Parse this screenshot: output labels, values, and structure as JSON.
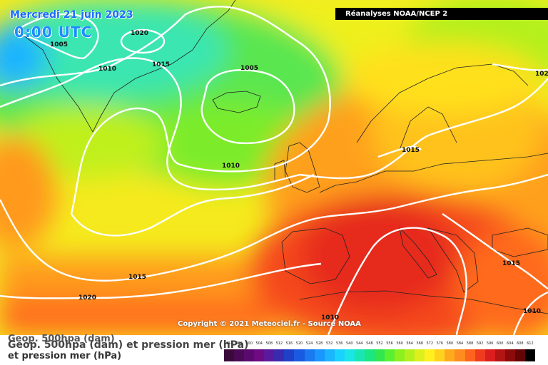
{
  "header": {
    "date": "Mercredi 21 juin 2023",
    "time": "0:00 UTC",
    "source": "Réanalyses NOAA/NCEP 2"
  },
  "copyright": "Copyright © 2021 Meteociel.fr - Source NOAA",
  "isobars": {
    "l1020_nw": "1020",
    "l1005_w": "1005",
    "l1010_w": "1010",
    "l1015_n": "1015",
    "l1005_ice": "1005",
    "l1010_c": "1010",
    "l1015_eu": "1015",
    "l102_ne": "102",
    "l1015_sw": "1015",
    "l1020_sw": "1020",
    "l1015_e": "1015",
    "l1010_se": "1010",
    "l1010_s": "1010"
  },
  "legend": {
    "title_ghost": "Geop. 500hpa (dam)",
    "title": "Geop. 500hpa (dam) et pression mer (hPa)",
    "title_line2": "et pression mer (hPa)",
    "scale_labels": [
      "492",
      "496",
      "500",
      "504",
      "508",
      "512",
      "516",
      "520",
      "524",
      "528",
      "532",
      "536",
      "540",
      "544",
      "548",
      "552",
      "556",
      "560",
      "564",
      "568",
      "572",
      "576",
      "580",
      "584",
      "588",
      "592",
      "596",
      "600",
      "604",
      "608",
      "612"
    ],
    "scale_colors": [
      "#3a0a3a",
      "#4b0a55",
      "#5a0a6e",
      "#6e0a82",
      "#5a1a9c",
      "#3a2ab0",
      "#2040c8",
      "#1a5ae0",
      "#1a78f0",
      "#1a96ff",
      "#1ab4ff",
      "#1ad2ff",
      "#1ae6e6",
      "#1ae6b4",
      "#1ae682",
      "#32e650",
      "#5af032",
      "#8cf01e",
      "#b4f01e",
      "#dcf01e",
      "#fff01e",
      "#ffd21e",
      "#ffaa1e",
      "#ff8c1e",
      "#ff641e",
      "#f03c1e",
      "#dc1e1e",
      "#b41414",
      "#8c0a0a",
      "#640505",
      "#000000"
    ]
  }
}
